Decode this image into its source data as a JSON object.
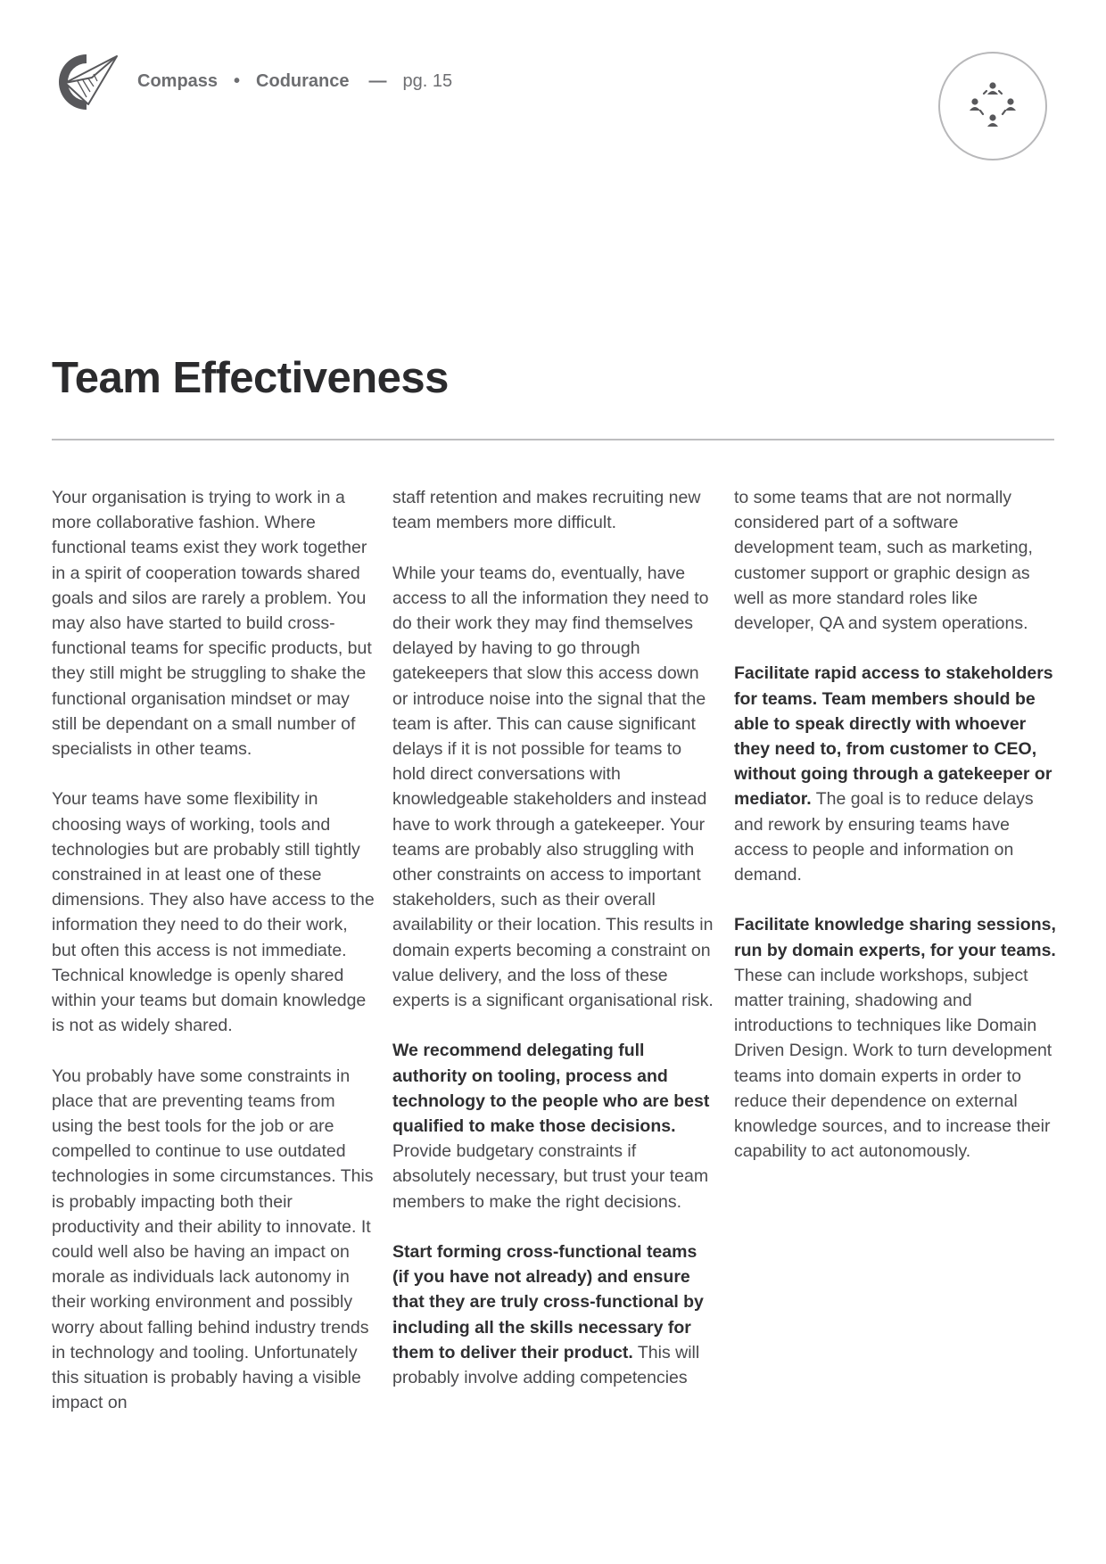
{
  "header": {
    "brand": "Compass",
    "separator": "•",
    "company": "Codurance",
    "dash": "—",
    "page": "pg. 15",
    "logo_icon": "codurance-paper-plane-logo",
    "section_icon": "team-circle-icon"
  },
  "title": "Team Effectiveness",
  "columns": {
    "col1": {
      "p1": "Your organisation is trying to work in a more collaborative fashion. Where functional teams exist they work together in a spirit of cooperation towards shared goals and silos are rarely a problem. You may also have started to build cross-functional teams for specific products, but they still might be struggling to shake the functional organisation mindset or may still be dependant on a small number of specialists in other teams.",
      "p2": "Your teams have some flexibility in choosing ways of working, tools and technologies but are probably still tightly constrained in at least one of these dimensions. They also have access to the information they need to do their work, but often this access is not immediate. Technical knowledge is openly shared within your teams but domain knowledge is not as widely shared.",
      "p3": "You probably have some constraints in place that are preventing teams from using the best tools for the job or are compelled to continue to use outdated technologies in some circumstances. This is probably impacting both their productivity and their ability to innovate. It could well also be having an impact on morale as individuals lack autonomy in their working environment and possibly worry about falling behind industry trends in technology and tooling. Unfortunately this situation is probably having a visible impact on"
    },
    "col2": {
      "p1": "staff retention and makes recruiting new team members more difficult.",
      "p2": "While your teams do, eventually, have access to all the information they need to do their work they may find themselves delayed by having to go through gatekeepers that slow this access down or introduce noise into the signal that the team is after. This can cause significant delays if it is not possible for teams to hold direct conversations with knowledgeable stakeholders and instead have to work through a gatekeeper. Your teams are probably also struggling with other constraints on access to important stakeholders, such as their overall availability or their location. This results in domain experts becoming a constraint on value delivery, and the loss of these experts is a significant organisational risk.",
      "p3_bold": "We recommend delegating full authority on tooling, process and technology to the people who are best qualified to make those decisions.",
      "p3_rest": " Provide budgetary constraints if absolutely necessary, but trust your team members to make the right decisions.",
      "p4_bold": "Start forming cross-functional teams (if you have not already) and ensure that they are truly cross-functional by including all the skills necessary for them to deliver their product.",
      "p4_rest": " This will probably involve adding competencies"
    },
    "col3": {
      "p1": "to some teams that are not normally considered part of a software development team, such as marketing, customer support or graphic design as well as more standard roles like developer, QA and system operations.",
      "p2_bold": "Facilitate rapid access to stakeholders for teams. Team members should be able to speak directly with whoever they need to, from customer to CEO, without going through a gatekeeper or mediator.",
      "p2_rest": " The goal is to reduce delays and rework by ensuring teams have access to people and information on demand.",
      "p3_bold": "Facilitate knowledge sharing sessions, run by domain experts, for your teams.",
      "p3_rest": " These can include workshops, subject matter training, shadowing and introductions to techniques like Domain Driven Design. Work to turn development teams into domain experts in order to reduce their dependence on external knowledge sources, and to increase their capability to act autonomously."
    }
  },
  "colors": {
    "title": "#2b2b2d",
    "body_text": "#4a4a4d",
    "header_text": "#6d6e71",
    "rule": "#bdbdbf",
    "logo": "#58585b"
  }
}
